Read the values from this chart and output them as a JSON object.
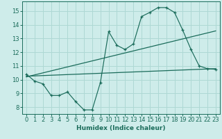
{
  "xlabel": "Humidex (Indice chaleur)",
  "bg_color": "#ceecea",
  "line_color": "#1a6b5a",
  "grid_color": "#aed8d4",
  "xlim": [
    -0.5,
    23.5
  ],
  "ylim": [
    7.5,
    15.7
  ],
  "xticks": [
    0,
    1,
    2,
    3,
    4,
    5,
    6,
    7,
    8,
    9,
    10,
    11,
    12,
    13,
    14,
    15,
    16,
    17,
    18,
    19,
    20,
    21,
    22,
    23
  ],
  "yticks": [
    8,
    9,
    10,
    11,
    12,
    13,
    14,
    15
  ],
  "series1_x": [
    0,
    1,
    2,
    3,
    4,
    5,
    6,
    7,
    8,
    9,
    10,
    11,
    12,
    13,
    14,
    15,
    16,
    17,
    18,
    19,
    20,
    21,
    22,
    23
  ],
  "series1_y": [
    10.4,
    9.9,
    9.7,
    8.85,
    8.85,
    9.1,
    8.4,
    7.8,
    7.8,
    9.8,
    13.5,
    12.5,
    12.2,
    12.6,
    14.6,
    14.9,
    15.25,
    15.25,
    14.9,
    13.6,
    12.2,
    11.0,
    10.8,
    10.75
  ],
  "series2_x": [
    0,
    23
  ],
  "series2_y": [
    10.25,
    10.8
  ],
  "series3_x": [
    0,
    23
  ],
  "series3_y": [
    10.2,
    13.55
  ],
  "xlabel_fontsize": 6.5,
  "tick_fontsize": 6
}
